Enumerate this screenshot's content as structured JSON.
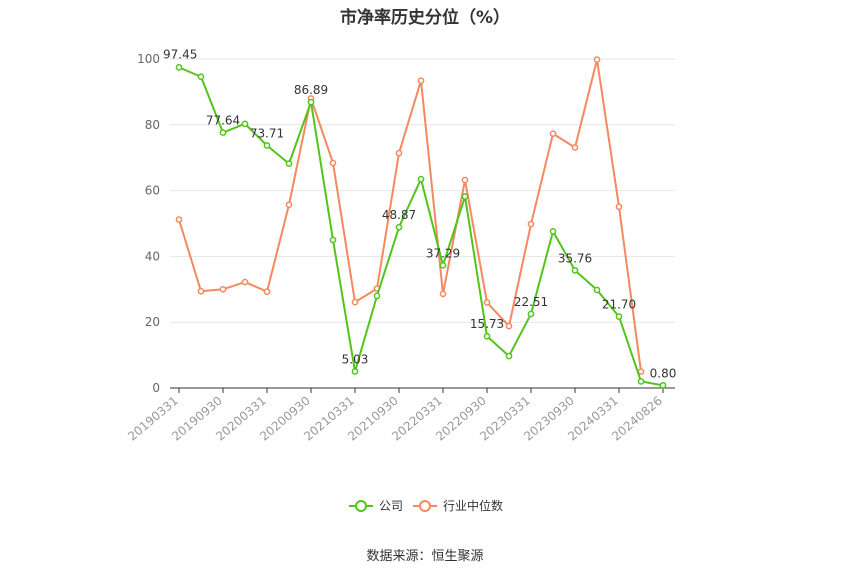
{
  "title": "市净率历史分位（%）",
  "source": "数据来源：恒生聚源",
  "colors": {
    "company": "#52c41a",
    "industry": "#f4895f",
    "grid": "#e6e6e6",
    "axis": "#333333"
  },
  "chart_data": {
    "type": "line",
    "title": "市净率历史分位（%）",
    "ylim": [
      0,
      100
    ],
    "yticks": [
      0,
      20,
      40,
      60,
      80,
      100
    ],
    "grid": true,
    "legend": "bottom",
    "x": [
      "20190331",
      "20190630",
      "20190930",
      "20191231",
      "20200331",
      "20200630",
      "20200930",
      "20201231",
      "20210331",
      "20210630",
      "20210930",
      "20211231",
      "20220331",
      "20220630",
      "20220930",
      "20221231",
      "20230331",
      "20230630",
      "20230930",
      "20231231",
      "20240331",
      "20240630",
      "20240826"
    ],
    "x_tick_labels": [
      "20190331",
      "20190930",
      "20200331",
      "20200930",
      "20210331",
      "20210930",
      "20220331",
      "20220930",
      "20230331",
      "20230930",
      "20240331",
      "20240826"
    ],
    "series": [
      {
        "name": "公司",
        "values": [
          97.45,
          94.6,
          77.64,
          80.3,
          73.71,
          68.2,
          86.89,
          45.0,
          5.03,
          28.0,
          48.87,
          63.5,
          37.29,
          58.2,
          15.73,
          9.7,
          22.51,
          47.6,
          35.76,
          29.8,
          21.7,
          2.0,
          0.8
        ],
        "labels": {
          "0": "97.45",
          "2": "77.64",
          "4": "73.71",
          "6": "86.89",
          "8": "5.03",
          "10": "48.87",
          "12": "37.29",
          "14": "15.73",
          "16": "22.51",
          "18": "35.76",
          "20": "21.70",
          "22": "0.80"
        }
      },
      {
        "name": "行业中位数",
        "values": [
          51.2,
          29.4,
          30.0,
          32.2,
          29.3,
          55.7,
          88.0,
          68.4,
          26.1,
          30.2,
          71.4,
          93.4,
          28.6,
          63.2,
          26.0,
          18.8,
          49.8,
          77.3,
          73.1,
          99.8,
          55.1,
          5.0,
          null
        ]
      }
    ]
  }
}
